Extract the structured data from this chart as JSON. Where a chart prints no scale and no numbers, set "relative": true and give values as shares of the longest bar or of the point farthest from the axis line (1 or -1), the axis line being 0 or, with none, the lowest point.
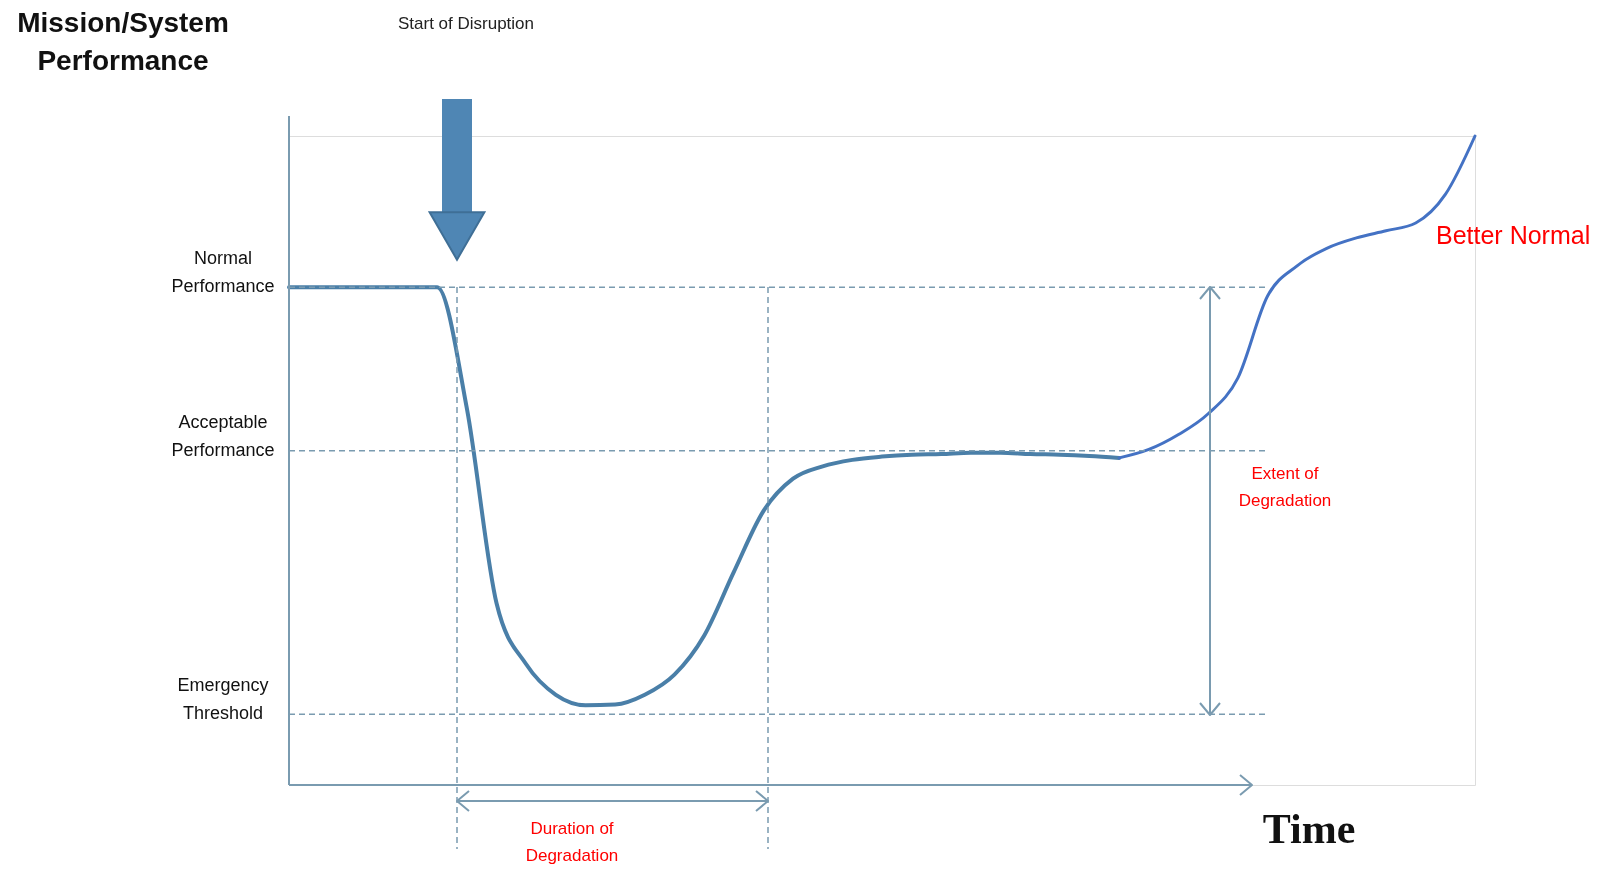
{
  "chart_data": {
    "type": "line",
    "relative": true,
    "legend": false,
    "ylabel": "Mission/System\nPerformance",
    "xlabel": "Time",
    "categories": [
      null,
      null,
      null,
      null,
      null,
      null,
      null,
      null,
      null,
      null,
      null,
      null,
      null,
      null,
      null,
      null,
      null,
      null,
      null,
      null,
      null,
      null,
      null,
      null,
      null,
      null,
      null,
      null,
      null,
      null,
      null,
      null,
      null,
      null,
      null,
      null,
      null,
      null,
      null,
      null,
      null
    ],
    "series": [
      {
        "color": "#4a7fa8",
        "values": [
          0.767,
          0.767,
          0.767,
          0.767,
          0.767,
          0.767,
          0.58,
          0.28,
          0.186,
          0.139,
          0.123,
          0.124,
          0.139,
          0.17,
          0.23,
          0.328,
          0.422,
          0.472,
          0.491,
          0.501,
          0.506,
          0.509,
          0.51,
          0.512,
          0.512,
          0.51,
          0.509,
          0.507,
          0.504,
          null,
          null,
          null,
          null,
          null,
          null,
          null,
          null,
          null,
          null,
          null,
          null
        ]
      },
      {
        "name": "Better Normal",
        "color": "#4472c4",
        "values": [
          null,
          null,
          null,
          null,
          null,
          null,
          null,
          null,
          null,
          null,
          null,
          null,
          null,
          null,
          null,
          null,
          null,
          null,
          null,
          null,
          null,
          null,
          null,
          null,
          null,
          null,
          null,
          null,
          0.504,
          0.517,
          0.54,
          0.572,
          0.627,
          0.753,
          0.8,
          0.827,
          0.843,
          0.854,
          0.866,
          0.91,
          1.0
        ]
      }
    ],
    "ref_lines": [
      {
        "axis": "y",
        "value": 0.767,
        "label": "Normal\nPerformance",
        "color": "#7a9bb0",
        "line_style": "dashed"
      },
      {
        "axis": "y",
        "value": 0.515,
        "label": "Acceptable\nPerformance",
        "color": "#7a9bb0",
        "line_style": "dashed"
      },
      {
        "axis": "y",
        "value": 0.109,
        "label": "Emergency\nThreshold",
        "color": "#7a9bb0",
        "line_style": "dashed"
      }
    ],
    "annotations": [
      "Start of Disruption",
      "Duration of\nDegradation",
      "Extent of\nDegradation"
    ]
  }
}
